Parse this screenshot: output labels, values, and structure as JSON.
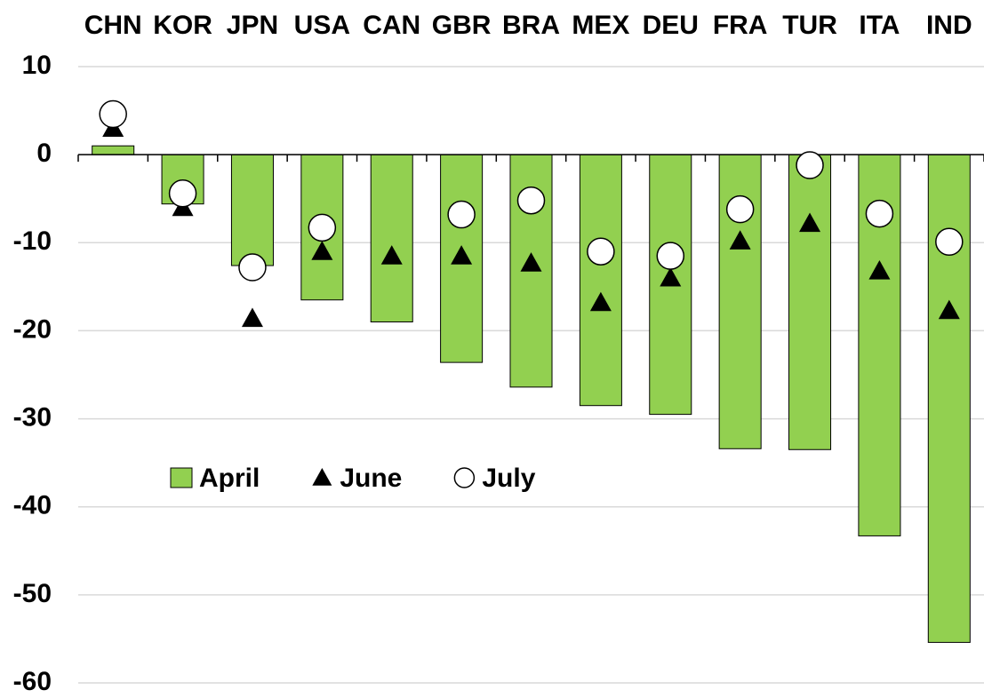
{
  "chart_data": {
    "type": "bar",
    "categories": [
      "CHN",
      "KOR",
      "JPN",
      "USA",
      "CAN",
      "GBR",
      "BRA",
      "MEX",
      "DEU",
      "FRA",
      "TUR",
      "ITA",
      "IND"
    ],
    "series": [
      {
        "name": "April",
        "type": "bar",
        "color": "#92d050",
        "values": [
          1.0,
          -5.6,
          -12.6,
          -16.5,
          -19.0,
          -23.6,
          -26.4,
          -28.5,
          -29.5,
          -33.4,
          -33.5,
          -43.3,
          -55.4
        ]
      },
      {
        "name": "June",
        "type": "triangle",
        "color": "#000000",
        "values": [
          3.0,
          -6.0,
          -18.6,
          -11.0,
          -11.5,
          -11.5,
          -12.3,
          -16.8,
          -14.0,
          -9.8,
          -7.8,
          -13.2,
          -17.7
        ]
      },
      {
        "name": "July",
        "type": "circle",
        "color": "#ffffff",
        "values": [
          4.6,
          -4.4,
          -12.8,
          -8.3,
          null,
          -6.8,
          -5.2,
          -11.0,
          -11.5,
          -6.2,
          -1.2,
          -6.7,
          -9.9
        ]
      }
    ],
    "ylim": [
      -60,
      10
    ],
    "yticks": [
      10,
      0,
      -10,
      -20,
      -30,
      -40,
      -50,
      -60
    ],
    "grid": true
  }
}
